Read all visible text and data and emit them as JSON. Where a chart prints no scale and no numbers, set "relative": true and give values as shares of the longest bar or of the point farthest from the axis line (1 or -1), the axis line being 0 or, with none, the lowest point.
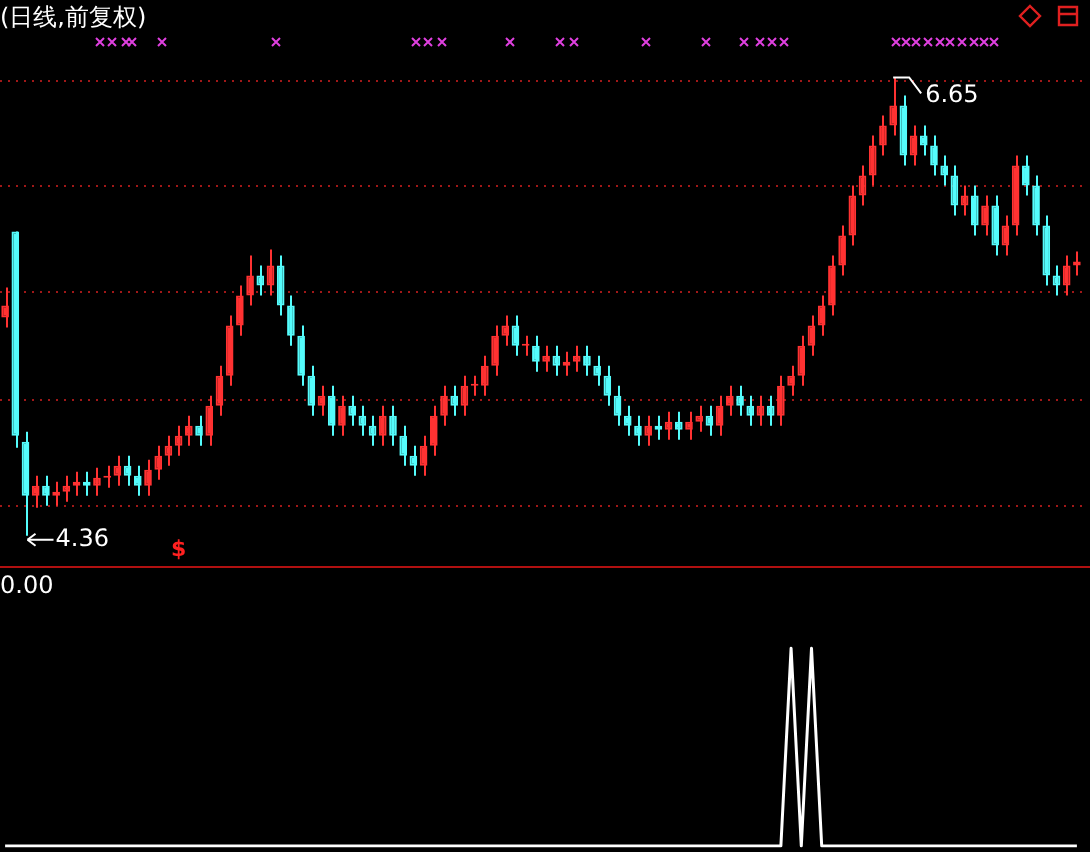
{
  "chart_data": [
    {
      "type": "candlestick",
      "title": "(日线,前复权)",
      "categories": [
        null,
        null,
        null,
        null,
        null,
        null,
        null,
        null,
        null,
        null,
        null,
        null,
        null,
        null,
        null,
        null,
        null,
        null,
        null,
        null,
        null,
        null,
        null,
        null,
        null,
        null,
        null,
        null,
        null,
        null,
        null,
        null,
        null,
        null,
        null,
        null,
        null,
        null,
        null,
        null,
        null,
        null,
        null,
        null,
        null,
        null,
        null,
        null,
        null,
        null,
        null,
        null,
        null,
        null,
        null,
        null,
        null,
        null,
        null,
        null,
        null,
        null,
        null,
        null,
        null,
        null,
        null,
        null,
        null,
        null,
        null,
        null,
        null,
        null,
        null,
        null,
        null,
        null,
        null,
        null,
        null,
        null,
        null,
        null,
        null,
        null,
        null,
        null,
        null,
        null,
        null,
        null,
        null,
        null,
        null,
        null,
        null,
        null,
        null,
        null,
        null,
        null,
        null,
        null,
        null,
        null
      ],
      "ohlc": [
        [
          5.45,
          5.6,
          5.4,
          5.51
        ],
        [
          5.88,
          5.88,
          4.8,
          4.86
        ],
        [
          4.83,
          4.88,
          4.36,
          4.56
        ],
        [
          4.56,
          4.66,
          4.5,
          4.61
        ],
        [
          4.61,
          4.66,
          4.51,
          4.56
        ],
        [
          4.56,
          4.63,
          4.51,
          4.58
        ],
        [
          4.58,
          4.66,
          4.53,
          4.61
        ],
        [
          4.61,
          4.68,
          4.56,
          4.63
        ],
        [
          4.63,
          4.68,
          4.56,
          4.61
        ],
        [
          4.61,
          4.7,
          4.56,
          4.65
        ],
        [
          4.65,
          4.71,
          4.6,
          4.66
        ],
        [
          4.66,
          4.76,
          4.61,
          4.71
        ],
        [
          4.71,
          4.76,
          4.61,
          4.66
        ],
        [
          4.66,
          4.71,
          4.56,
          4.61
        ],
        [
          4.61,
          4.74,
          4.56,
          4.69
        ],
        [
          4.69,
          4.81,
          4.64,
          4.76
        ],
        [
          4.76,
          4.86,
          4.71,
          4.81
        ],
        [
          4.81,
          4.91,
          4.76,
          4.86
        ],
        [
          4.86,
          4.96,
          4.81,
          4.91
        ],
        [
          4.91,
          4.96,
          4.81,
          4.86
        ],
        [
          4.86,
          5.06,
          4.81,
          5.01
        ],
        [
          5.01,
          5.21,
          4.96,
          5.16
        ],
        [
          5.16,
          5.46,
          5.11,
          5.41
        ],
        [
          5.41,
          5.61,
          5.36,
          5.56
        ],
        [
          5.56,
          5.76,
          5.51,
          5.66
        ],
        [
          5.66,
          5.71,
          5.56,
          5.61
        ],
        [
          5.61,
          5.79,
          5.56,
          5.71
        ],
        [
          5.71,
          5.76,
          5.46,
          5.51
        ],
        [
          5.51,
          5.56,
          5.31,
          5.36
        ],
        [
          5.36,
          5.41,
          5.11,
          5.16
        ],
        [
          5.16,
          5.21,
          4.96,
          5.01
        ],
        [
          5.01,
          5.11,
          4.96,
          5.06
        ],
        [
          5.06,
          5.11,
          4.86,
          4.91
        ],
        [
          4.91,
          5.06,
          4.86,
          5.01
        ],
        [
          5.01,
          5.06,
          4.91,
          4.96
        ],
        [
          4.96,
          5.01,
          4.86,
          4.91
        ],
        [
          4.91,
          4.96,
          4.81,
          4.86
        ],
        [
          4.86,
          5.01,
          4.81,
          4.96
        ],
        [
          4.96,
          5.01,
          4.81,
          4.86
        ],
        [
          4.86,
          4.91,
          4.71,
          4.76
        ],
        [
          4.76,
          4.81,
          4.66,
          4.71
        ],
        [
          4.71,
          4.86,
          4.66,
          4.81
        ],
        [
          4.81,
          5.01,
          4.76,
          4.96
        ],
        [
          4.96,
          5.11,
          4.91,
          5.06
        ],
        [
          5.06,
          5.11,
          4.96,
          5.01
        ],
        [
          5.01,
          5.16,
          4.96,
          5.11
        ],
        [
          5.11,
          5.16,
          5.06,
          5.11
        ],
        [
          5.11,
          5.26,
          5.06,
          5.21
        ],
        [
          5.21,
          5.41,
          5.16,
          5.36
        ],
        [
          5.36,
          5.46,
          5.31,
          5.41
        ],
        [
          5.41,
          5.46,
          5.26,
          5.31
        ],
        [
          5.31,
          5.36,
          5.26,
          5.31
        ],
        [
          5.31,
          5.36,
          5.18,
          5.23
        ],
        [
          5.23,
          5.31,
          5.18,
          5.26
        ],
        [
          5.26,
          5.31,
          5.16,
          5.21
        ],
        [
          5.21,
          5.28,
          5.16,
          5.23
        ],
        [
          5.23,
          5.31,
          5.18,
          5.26
        ],
        [
          5.26,
          5.31,
          5.16,
          5.21
        ],
        [
          5.21,
          5.26,
          5.11,
          5.16
        ],
        [
          5.16,
          5.21,
          5.01,
          5.06
        ],
        [
          5.06,
          5.11,
          4.91,
          4.96
        ],
        [
          4.96,
          5.01,
          4.86,
          4.91
        ],
        [
          4.91,
          4.96,
          4.81,
          4.86
        ],
        [
          4.86,
          4.96,
          4.81,
          4.91
        ],
        [
          4.91,
          4.96,
          4.84,
          4.89
        ],
        [
          4.89,
          4.98,
          4.84,
          4.93
        ],
        [
          4.93,
          4.98,
          4.84,
          4.89
        ],
        [
          4.89,
          4.98,
          4.84,
          4.93
        ],
        [
          4.93,
          5.01,
          4.88,
          4.96
        ],
        [
          4.96,
          5.01,
          4.86,
          4.91
        ],
        [
          4.91,
          5.06,
          4.86,
          5.01
        ],
        [
          5.01,
          5.11,
          4.96,
          5.06
        ],
        [
          5.06,
          5.11,
          4.96,
          5.01
        ],
        [
          5.01,
          5.06,
          4.91,
          4.96
        ],
        [
          4.96,
          5.06,
          4.91,
          5.01
        ],
        [
          5.01,
          5.06,
          4.91,
          4.96
        ],
        [
          4.96,
          5.16,
          4.91,
          5.11
        ],
        [
          5.11,
          5.21,
          5.06,
          5.16
        ],
        [
          5.16,
          5.36,
          5.11,
          5.31
        ],
        [
          5.31,
          5.46,
          5.26,
          5.41
        ],
        [
          5.41,
          5.56,
          5.36,
          5.51
        ],
        [
          5.51,
          5.76,
          5.46,
          5.71
        ],
        [
          5.71,
          5.91,
          5.66,
          5.86
        ],
        [
          5.86,
          6.11,
          5.81,
          6.06
        ],
        [
          6.06,
          6.21,
          6.01,
          6.16
        ],
        [
          6.16,
          6.36,
          6.11,
          6.31
        ],
        [
          6.31,
          6.46,
          6.26,
          6.41
        ],
        [
          6.41,
          6.65,
          6.36,
          6.51
        ],
        [
          6.51,
          6.56,
          6.21,
          6.26
        ],
        [
          6.26,
          6.41,
          6.21,
          6.36
        ],
        [
          6.36,
          6.41,
          6.26,
          6.31
        ],
        [
          6.31,
          6.36,
          6.16,
          6.21
        ],
        [
          6.21,
          6.26,
          6.11,
          6.16
        ],
        [
          6.16,
          6.21,
          5.96,
          6.01
        ],
        [
          6.01,
          6.11,
          5.96,
          6.06
        ],
        [
          6.06,
          6.11,
          5.86,
          5.91
        ],
        [
          5.91,
          6.06,
          5.86,
          6.01
        ],
        [
          6.01,
          6.06,
          5.76,
          5.81
        ],
        [
          5.81,
          5.96,
          5.76,
          5.91
        ],
        [
          5.91,
          6.26,
          5.86,
          6.21
        ],
        [
          6.21,
          6.26,
          6.06,
          6.11
        ],
        [
          6.11,
          6.16,
          5.86,
          5.91
        ],
        [
          5.91,
          5.96,
          5.61,
          5.66
        ],
        [
          5.66,
          5.71,
          5.56,
          5.61
        ],
        [
          5.61,
          5.76,
          5.56,
          5.71
        ],
        [
          5.71,
          5.78,
          5.66,
          5.73
        ]
      ],
      "colors": [
        "#ff3232",
        "#54fcfc",
        "#54fcfc",
        "#ff3232",
        "#54fcfc",
        "#ff3232",
        "#ff3232",
        "#ff3232",
        "#54fcfc",
        "#ff3232",
        "#ff3232",
        "#ff3232",
        "#54fcfc",
        "#54fcfc",
        "#ff3232",
        "#ff3232",
        "#ff3232",
        "#ff3232",
        "#ff3232",
        "#54fcfc",
        "#ff3232",
        "#ff3232",
        "#ff3232",
        "#ff3232",
        "#ff3232",
        "#54fcfc",
        "#ff3232",
        "#54fcfc",
        "#54fcfc",
        "#54fcfc",
        "#54fcfc",
        "#ff3232",
        "#54fcfc",
        "#ff3232",
        "#54fcfc",
        "#54fcfc",
        "#54fcfc",
        "#ff3232",
        "#54fcfc",
        "#54fcfc",
        "#54fcfc",
        "#ff3232",
        "#ff3232",
        "#ff3232",
        "#54fcfc",
        "#ff3232",
        "#ff3232",
        "#ff3232",
        "#ff3232",
        "#ff3232",
        "#54fcfc",
        "#ff3232",
        "#54fcfc",
        "#ff3232",
        "#54fcfc",
        "#ff3232",
        "#ff3232",
        "#54fcfc",
        "#54fcfc",
        "#54fcfc",
        "#54fcfc",
        "#54fcfc",
        "#54fcfc",
        "#ff3232",
        "#54fcfc",
        "#ff3232",
        "#54fcfc",
        "#ff3232",
        "#ff3232",
        "#54fcfc",
        "#ff3232",
        "#ff3232",
        "#54fcfc",
        "#54fcfc",
        "#ff3232",
        "#54fcfc",
        "#ff3232",
        "#ff3232",
        "#ff3232",
        "#ff3232",
        "#ff3232",
        "#ff3232",
        "#ff3232",
        "#ff3232",
        "#ff3232",
        "#ff3232",
        "#ff3232",
        "#ff3232",
        "#54fcfc",
        "#ff3232",
        "#54fcfc",
        "#54fcfc",
        "#54fcfc",
        "#54fcfc",
        "#ff3232",
        "#54fcfc",
        "#ff3232",
        "#54fcfc",
        "#ff3232",
        "#ff3232",
        "#54fcfc",
        "#54fcfc",
        "#54fcfc",
        "#54fcfc",
        "#ff3232",
        "#ff3232"
      ],
      "yticks": [
        {
          "value": 4.51,
          "label": null
        },
        {
          "value": 5.04,
          "label": null
        },
        {
          "value": 5.58,
          "label": null
        },
        {
          "value": 6.11,
          "label": null
        },
        {
          "value": 6.63,
          "label": null
        }
      ],
      "grid": "y",
      "tick_labels": false,
      "legend": false,
      "annotations": [
        "6.65",
        "4.36",
        "$"
      ]
    },
    {
      "type": "line",
      "title": "0.00",
      "relative": true,
      "tick_labels": false,
      "legend": false,
      "categories": [
        null,
        null,
        null,
        null,
        null,
        null,
        null,
        null,
        null,
        null,
        null,
        null,
        null,
        null,
        null,
        null,
        null,
        null,
        null,
        null,
        null,
        null,
        null,
        null,
        null,
        null,
        null,
        null,
        null,
        null,
        null,
        null,
        null,
        null,
        null,
        null,
        null,
        null,
        null,
        null,
        null,
        null,
        null,
        null,
        null,
        null,
        null,
        null,
        null,
        null,
        null,
        null,
        null,
        null,
        null,
        null,
        null,
        null,
        null,
        null,
        null,
        null,
        null,
        null,
        null,
        null,
        null,
        null,
        null,
        null,
        null,
        null,
        null,
        null,
        null,
        null,
        null,
        null,
        null,
        null,
        null,
        null,
        null,
        null,
        null,
        null,
        null,
        null,
        null,
        null,
        null,
        null,
        null,
        null,
        null,
        null,
        null,
        null,
        null,
        null,
        null,
        null,
        null,
        null,
        null,
        null
      ],
      "series": [
        {
          "color": "#ffffff",
          "values": [
            0,
            0,
            0,
            0,
            0,
            0,
            0,
            0,
            0,
            0,
            0,
            0,
            0,
            0,
            0,
            0,
            0,
            0,
            0,
            0,
            0,
            0,
            0,
            0,
            0,
            0,
            0,
            0,
            0,
            0,
            0,
            0,
            0,
            0,
            0,
            0,
            0,
            0,
            0,
            0,
            0,
            0,
            0,
            0,
            0,
            0,
            0,
            0,
            0,
            0,
            0,
            0,
            0,
            0,
            0,
            0,
            0,
            0,
            0,
            0,
            0,
            0,
            0,
            0,
            0,
            0,
            0,
            0,
            0,
            0,
            0,
            0,
            0,
            0,
            0,
            0,
            0,
            1,
            0,
            1,
            0,
            0,
            0,
            0,
            0,
            0,
            0,
            0,
            0,
            0,
            0,
            0,
            0,
            0,
            0,
            0,
            0,
            0,
            0,
            0,
            0,
            0,
            0,
            0,
            0,
            0
          ]
        }
      ]
    }
  ]
}
